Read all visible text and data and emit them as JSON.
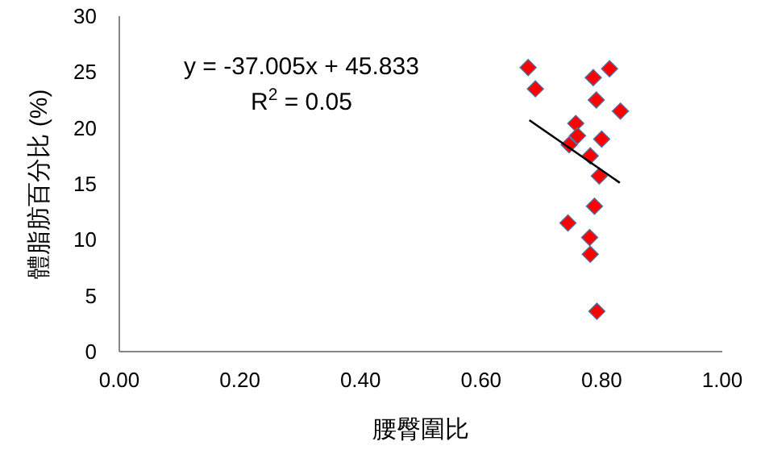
{
  "chart_data": {
    "type": "scatter",
    "xlabel": "腰臀圍比",
    "ylabel": "體脂肪百分比 (%)",
    "annotations": [
      "y = -37.005x + 45.833",
      "R$^{2}$ = 0.05"
    ],
    "xlim": [
      0,
      1
    ],
    "xticks": [
      {
        "value": 0,
        "label": "0.00"
      },
      {
        "value": 0.2,
        "label": "0.20"
      },
      {
        "value": 0.4,
        "label": "0.40"
      },
      {
        "value": 0.6,
        "label": "0.60"
      },
      {
        "value": 0.8,
        "label": "0.80"
      },
      {
        "value": 1,
        "label": "1.00"
      }
    ],
    "ylim": [
      0,
      30
    ],
    "yticks": [
      0,
      5,
      10,
      15,
      20,
      25,
      30
    ],
    "grid": false,
    "series": [
      {
        "color": "#ff0000",
        "marker": "diamond",
        "x": [
          0.678,
          0.69,
          0.786,
          0.813,
          0.791,
          0.831,
          0.757,
          0.76,
          0.8,
          0.746,
          0.781,
          0.796,
          0.788,
          0.744,
          0.78,
          0.781,
          0.792
        ],
        "values": [
          25.4,
          23.5,
          24.5,
          25.3,
          22.5,
          21.5,
          20.4,
          19.3,
          19.0,
          18.5,
          17.5,
          15.7,
          13.0,
          11.5,
          10.2,
          8.7,
          3.6
        ]
      },
      {
        "type": "line",
        "color": "#000000",
        "line_style": "solid",
        "x": [
          0.68,
          0.83
        ],
        "values": [
          20.7,
          15.1
        ]
      }
    ]
  }
}
